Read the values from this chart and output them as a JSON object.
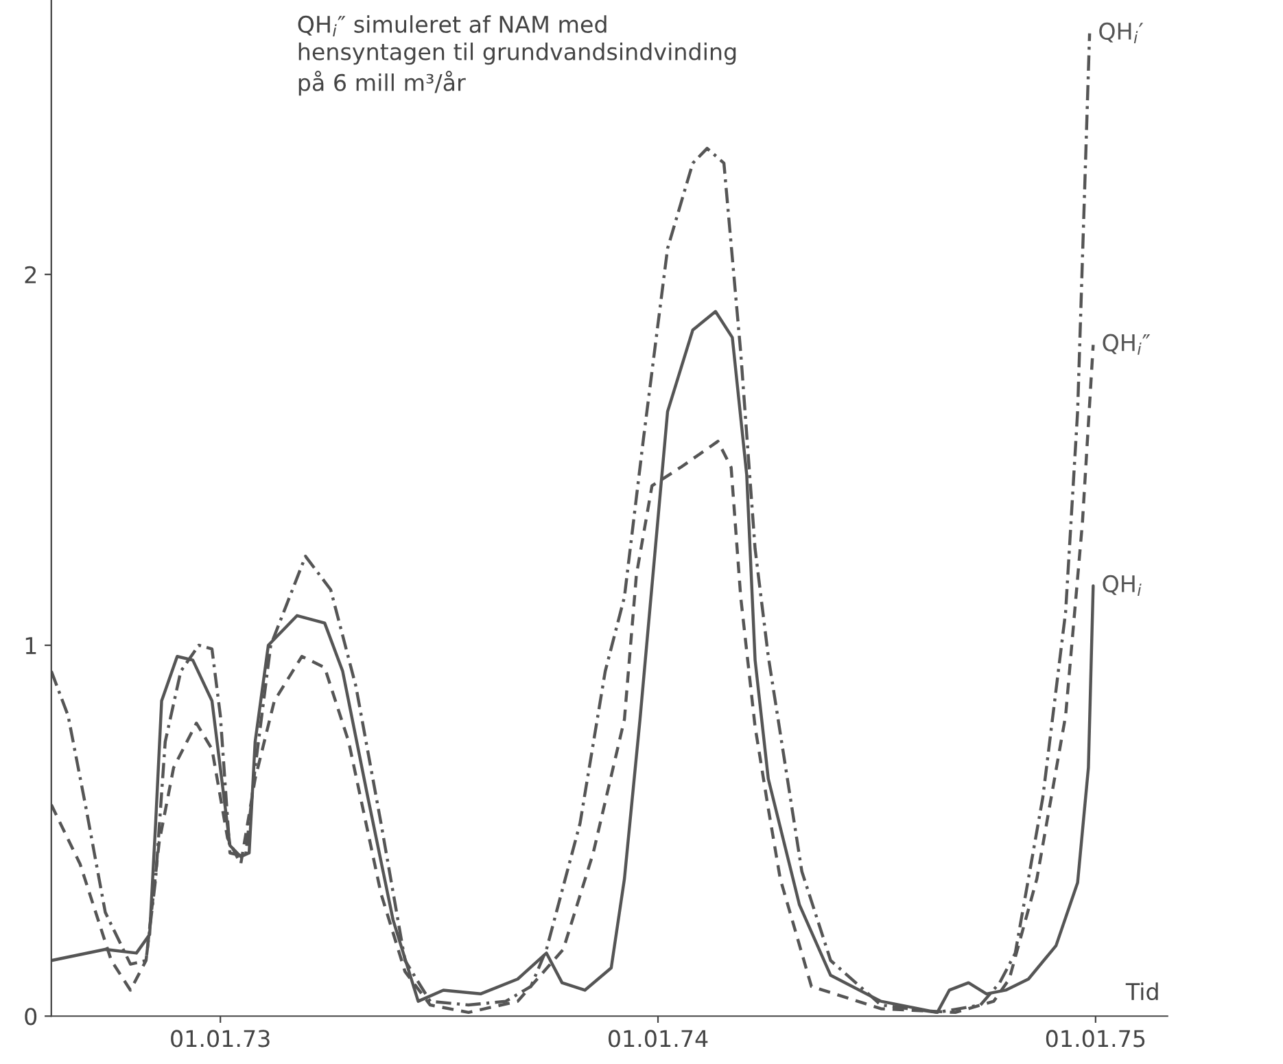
{
  "chart_data": {
    "type": "line",
    "xlabel": "Tid",
    "annotations": [
      "QH$_{i}$″ simuleret af NAM med\nhensyntagen til grundvandsindvinding\npå 6 mill m³/år"
    ],
    "xlim": [
      "1972-08-13",
      "1975-03-02"
    ],
    "xticks": [
      {
        "value": "1973-01-01",
        "label": "01.01.73"
      },
      {
        "value": "1974-01-01",
        "label": "01.01.74"
      },
      {
        "value": "1975-01-01",
        "label": "01.01.75"
      }
    ],
    "ylim": [
      0,
      2.74
    ],
    "yticks": [
      0,
      1,
      2
    ],
    "grid": false,
    "legend": false,
    "marker": "none",
    "series": [
      {
        "name": "QH$_{i}$′",
        "color": "#555555",
        "line_style": "dashdot",
        "x": [
          "1972-08-13",
          "1972-08-27",
          "1972-09-11",
          "1972-09-27",
          "1972-10-18",
          "1972-10-31",
          "1972-11-08",
          "1972-11-16",
          "1972-11-29",
          "1972-12-14",
          "1972-12-25",
          "1973-01-01",
          "1973-01-09",
          "1973-01-22",
          "1973-01-30",
          "1973-02-12",
          "1973-03-13",
          "1973-04-03",
          "1973-04-24",
          "1973-05-15",
          "1973-06-04",
          "1973-06-25",
          "1973-07-27",
          "1973-08-27",
          "1973-09-17",
          "1973-09-30",
          "1973-10-28",
          "1973-11-18",
          "1973-12-04",
          "1973-12-20",
          "1974-01-09",
          "1974-01-30",
          "1974-02-11",
          "1974-02-25",
          "1974-03-11",
          "1974-03-23",
          "1974-04-03",
          "1974-05-01",
          "1974-05-25",
          "1974-07-06",
          "1974-08-22",
          "1974-09-27",
          "1974-10-13",
          "1974-10-26",
          "1974-11-18",
          "1974-12-07",
          "1974-12-17",
          "1974-12-27"
        ],
        "values": [
          0.93,
          0.81,
          0.56,
          0.28,
          0.14,
          0.15,
          0.37,
          0.74,
          0.93,
          1.0,
          0.99,
          0.81,
          0.44,
          0.43,
          0.67,
          1.0,
          1.24,
          1.15,
          0.89,
          0.52,
          0.15,
          0.04,
          0.03,
          0.04,
          0.08,
          0.18,
          0.52,
          0.93,
          1.13,
          1.56,
          2.07,
          2.3,
          2.34,
          2.3,
          1.79,
          1.26,
          0.97,
          0.39,
          0.15,
          0.03,
          0.01,
          0.03,
          0.09,
          0.17,
          0.59,
          1.09,
          1.63,
          2.65
        ]
      },
      {
        "name": "QH$_{i}$″",
        "color": "#555555",
        "line_style": "dashed",
        "x": [
          "1972-08-13",
          "1972-09-06",
          "1972-10-02",
          "1972-10-18",
          "1972-10-31",
          "1972-11-11",
          "1972-11-23",
          "1972-12-12",
          "1972-12-25",
          "1973-01-07",
          "1973-01-18",
          "1973-01-30",
          "1973-02-15",
          "1973-03-10",
          "1973-03-29",
          "1973-04-18",
          "1973-05-15",
          "1973-06-04",
          "1973-06-25",
          "1973-07-27",
          "1973-09-06",
          "1973-10-14",
          "1973-11-08",
          "1973-12-04",
          "1973-12-14",
          "1973-12-27",
          "1974-01-20",
          "1974-02-20",
          "1974-03-03",
          "1974-03-11",
          "1974-03-23",
          "1974-04-03",
          "1974-04-13",
          "1974-05-09",
          "1974-07-06",
          "1974-09-06",
          "1974-10-08",
          "1974-10-21",
          "1974-11-13",
          "1974-12-07",
          "1974-12-21",
          "1974-12-30"
        ],
        "values": [
          0.57,
          0.41,
          0.15,
          0.07,
          0.15,
          0.47,
          0.67,
          0.79,
          0.72,
          0.48,
          0.41,
          0.64,
          0.85,
          0.97,
          0.94,
          0.74,
          0.33,
          0.12,
          0.03,
          0.01,
          0.04,
          0.18,
          0.44,
          0.8,
          1.19,
          1.43,
          1.48,
          1.55,
          1.48,
          1.13,
          0.78,
          0.56,
          0.37,
          0.08,
          0.02,
          0.01,
          0.04,
          0.1,
          0.37,
          0.81,
          1.33,
          1.81
        ]
      },
      {
        "name": "QH$_{i}$",
        "color": "#555555",
        "line_style": "solid",
        "x": [
          "1972-08-13",
          "1972-09-27",
          "1972-10-23",
          "1972-11-03",
          "1972-11-08",
          "1972-11-13",
          "1972-11-26",
          "1972-12-09",
          "1972-12-25",
          "1973-01-04",
          "1973-01-09",
          "1973-01-18",
          "1973-01-25",
          "1973-01-30",
          "1973-02-10",
          "1973-03-06",
          "1973-03-29",
          "1973-04-13",
          "1973-05-04",
          "1973-05-25",
          "1973-06-15",
          "1973-07-06",
          "1973-08-06",
          "1973-09-06",
          "1973-09-30",
          "1973-10-13",
          "1973-11-01",
          "1973-11-23",
          "1973-12-04",
          "1973-12-17",
          "1974-01-09",
          "1974-01-30",
          "1974-02-18",
          "1974-03-04",
          "1974-03-16",
          "1974-03-23",
          "1974-04-03",
          "1974-04-29",
          "1974-05-25",
          "1974-07-06",
          "1974-08-22",
          "1974-09-01",
          "1974-09-17",
          "1974-10-02",
          "1974-10-18",
          "1974-11-06",
          "1974-11-29",
          "1974-12-17",
          "1974-12-26",
          "1974-12-30"
        ],
        "values": [
          0.15,
          0.18,
          0.17,
          0.22,
          0.52,
          0.85,
          0.97,
          0.96,
          0.85,
          0.59,
          0.46,
          0.43,
          0.44,
          0.74,
          1.0,
          1.08,
          1.06,
          0.93,
          0.59,
          0.26,
          0.04,
          0.07,
          0.06,
          0.1,
          0.17,
          0.09,
          0.07,
          0.13,
          0.37,
          0.8,
          1.63,
          1.85,
          1.9,
          1.83,
          1.46,
          0.96,
          0.64,
          0.3,
          0.11,
          0.04,
          0.01,
          0.07,
          0.09,
          0.06,
          0.07,
          0.1,
          0.19,
          0.36,
          0.67,
          1.16
        ]
      }
    ]
  }
}
